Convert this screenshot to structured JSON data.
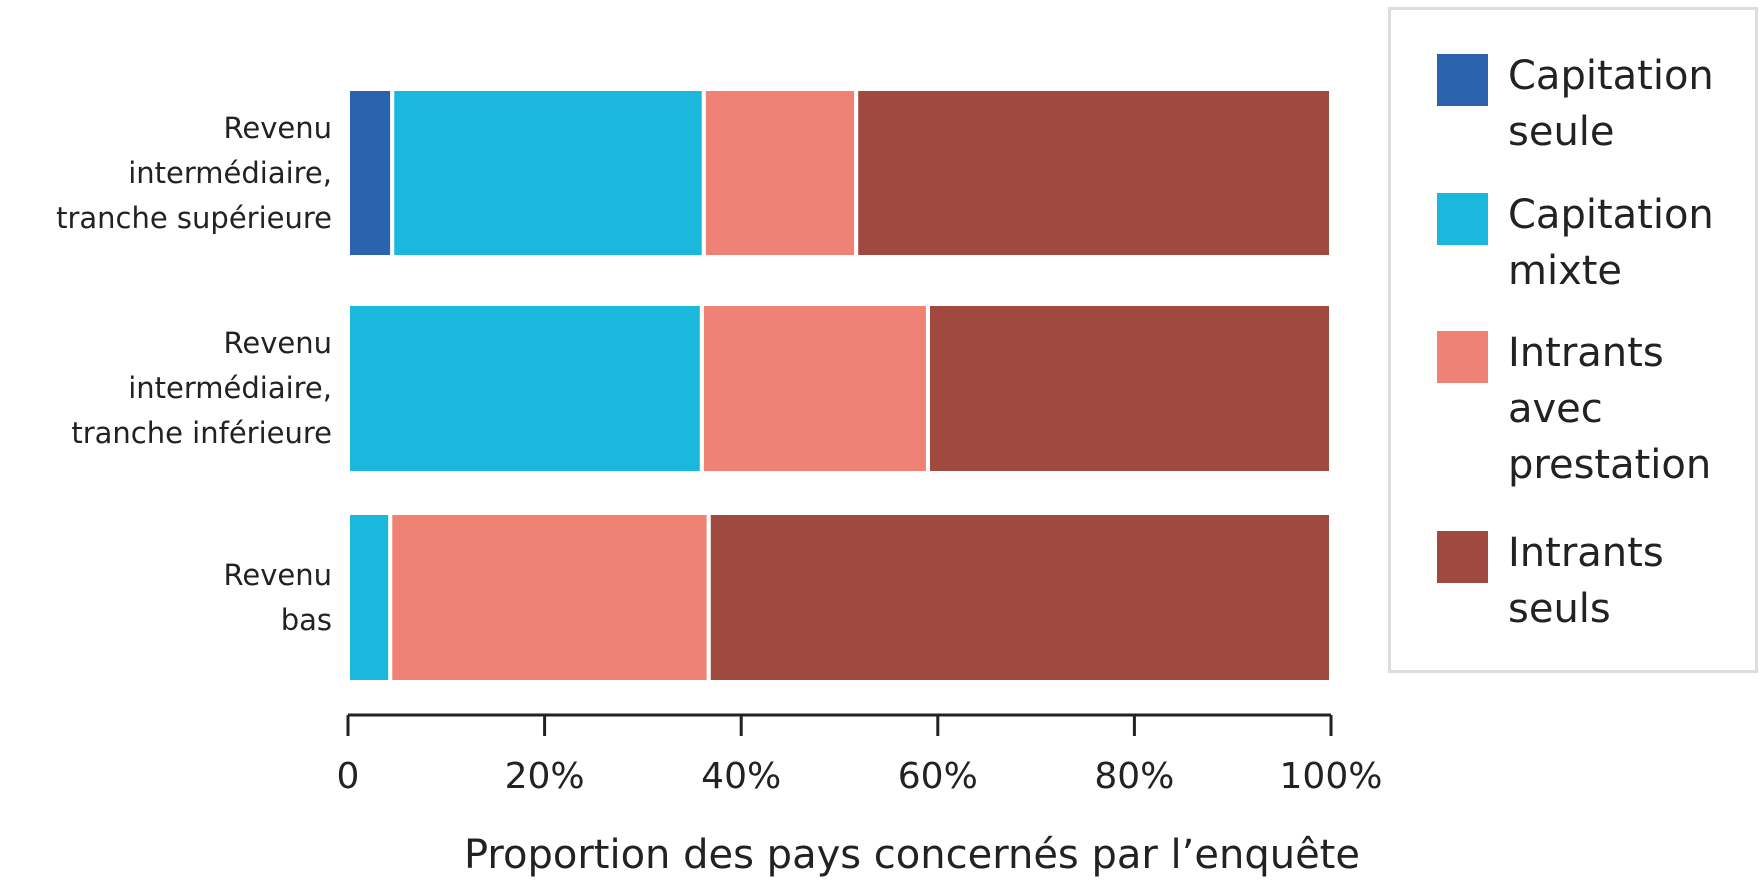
{
  "chart_data": {
    "type": "stacked-bar-horizontal",
    "categories": [
      "Revenu\nintermédiaire,\ntranche supérieure",
      "Revenu\nintermédiaire,\ntranche inférieure",
      "Revenu\nbas"
    ],
    "series": [
      {
        "name": "Capitation\nseule",
        "color": "#2b63ae",
        "values": [
          4.5,
          0,
          0
        ]
      },
      {
        "name": "Capitation\nmixte",
        "color": "#1bb8de",
        "values": [
          31.7,
          36,
          4.3
        ]
      },
      {
        "name": "Intrants\navec\nprestation",
        "color": "#f08275",
        "values": [
          15.5,
          23,
          32.4
        ]
      },
      {
        "name": "Intrants\nseuls",
        "color": "#a0493f",
        "values": [
          48.3,
          41,
          63.3
        ]
      }
    ],
    "xlim": [
      0,
      100
    ],
    "xticks": [
      0,
      {
        "value": 20,
        "label": "20%"
      },
      {
        "value": 40,
        "label": "40%"
      },
      {
        "value": 60,
        "label": "60%"
      },
      {
        "value": 80,
        "label": "80%"
      },
      {
        "value": 100,
        "label": "100%"
      }
    ],
    "xlabel": "Proportion des pays concernés par l’enquête",
    "legend": "right"
  }
}
